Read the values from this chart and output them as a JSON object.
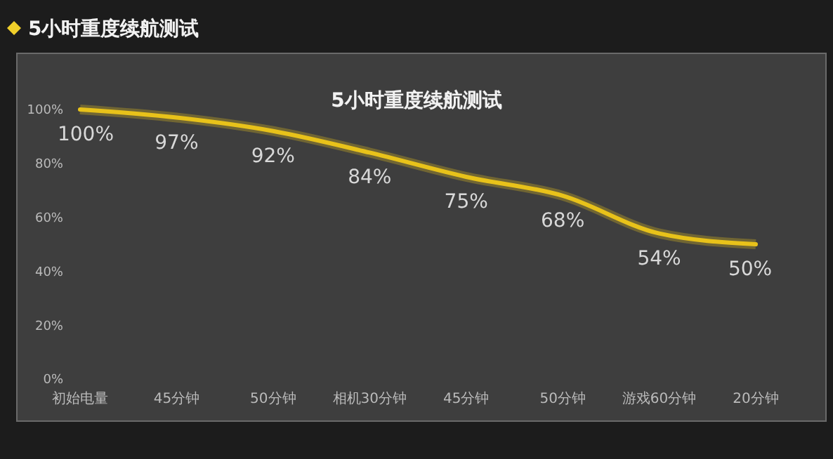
{
  "chart_data": {
    "type": "line",
    "title": "5小时重度续航测试",
    "subtitle": "5小时重度续航测试",
    "categories": [
      "初始电量",
      "45分钟",
      "50分钟",
      "相机30分钟",
      "45分钟",
      "50分钟",
      "游戏60分钟",
      "20分钟"
    ],
    "series": [
      {
        "color": "#e8c21a",
        "values": [
          100,
          97,
          92,
          84,
          75,
          68,
          54,
          50
        ],
        "value_labels": [
          "100%",
          "97%",
          "92%",
          "84%",
          "75%",
          "68%",
          "54%",
          "50%"
        ]
      }
    ],
    "ylim": [
      0,
      100
    ],
    "yticks": [
      {
        "value": 0,
        "label": "0%"
      },
      {
        "value": 20,
        "label": "20%"
      },
      {
        "value": 40,
        "label": "40%"
      },
      {
        "value": 60,
        "label": "60%"
      },
      {
        "value": 80,
        "label": "80%"
      },
      {
        "value": 100,
        "label": "100%"
      }
    ],
    "grid": false,
    "marker": "none",
    "line_style": "solid"
  }
}
